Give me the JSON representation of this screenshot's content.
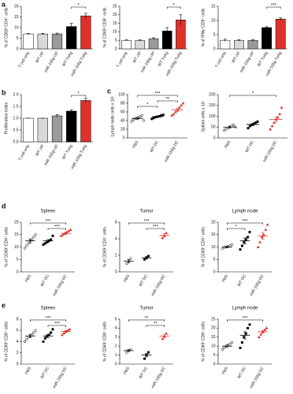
{
  "chart_data": [
    {
      "type": "bar",
      "panel": "a",
      "ylabel": "% of CD69⁺CD4⁺ cells",
      "categories": [
        "T cell only",
        "WT ctrl",
        "miR-155g ctrl",
        "WT TuAg",
        "miR-155g TuAg"
      ],
      "values": [
        7,
        7,
        7,
        10.5,
        15.5
      ],
      "errors": [
        0.3,
        0.3,
        0.4,
        1.5,
        1.2
      ],
      "colors": [
        "#ffffff",
        "#d9d9d9",
        "#9a9a9a",
        "#000000",
        "#e0302a"
      ],
      "ylim": [
        0,
        20
      ],
      "yticks": [
        0,
        5,
        10,
        15,
        20
      ],
      "annotations": [
        {
          "from": 3,
          "to": 4,
          "label": "*"
        }
      ]
    },
    {
      "type": "bar",
      "ylabel": "% of CD69⁺CD8⁺ cells",
      "categories": [
        "T cell only",
        "WT ctrl",
        "miR-155g ctrl",
        "WT TuAg",
        "miR-155g TuAg"
      ],
      "values": [
        5,
        5,
        6,
        10.5,
        17
      ],
      "errors": [
        0.3,
        0.3,
        0.5,
        2,
        3
      ],
      "colors": [
        "#ffffff",
        "#d9d9d9",
        "#9a9a9a",
        "#000000",
        "#e0302a"
      ],
      "ylim": [
        0,
        25
      ],
      "yticks": [
        0,
        5,
        10,
        15,
        20,
        25
      ],
      "annotations": [
        {
          "from": 3,
          "to": 4,
          "label": "*"
        }
      ]
    },
    {
      "type": "bar",
      "ylabel": "% of IFNγ⁺CD8⁺ cells",
      "categories": [
        "T cell only",
        "WT ctrl",
        "miR-155g ctrl",
        "WT TuAg",
        "miR-155g TuAg"
      ],
      "values": [
        3,
        3,
        3,
        7.5,
        10.5
      ],
      "errors": [
        0.4,
        0.3,
        0.3,
        0.3,
        0.4
      ],
      "colors": [
        "#ffffff",
        "#d9d9d9",
        "#9a9a9a",
        "#000000",
        "#e0302a"
      ],
      "ylim": [
        0,
        15
      ],
      "yticks": [
        0,
        5,
        10,
        15
      ],
      "annotations": [
        {
          "from": 3,
          "to": 4,
          "label": "***"
        }
      ]
    },
    {
      "type": "bar",
      "panel": "b",
      "ylabel": "Proliferation Index",
      "categories": [
        "T cell only",
        "WT ctrl",
        "miR-155g ctrl",
        "WT TuAg",
        "miR-155g TuAg"
      ],
      "values": [
        1.0,
        1.0,
        1.1,
        1.3,
        1.75
      ],
      "errors": [
        0,
        0,
        0.05,
        0.05,
        0.1
      ],
      "colors": [
        "#ffffff",
        "#d9d9d9",
        "#9a9a9a",
        "#000000",
        "#e0302a"
      ],
      "ylim": [
        0,
        2
      ],
      "yticks": [
        {
          "value": 0,
          "label": "0.0"
        },
        0.5,
        {
          "value": 1,
          "label": "1.0"
        },
        1.5,
        {
          "value": 2,
          "label": "2.0"
        }
      ],
      "annotations": [
        {
          "from": 3,
          "to": 4,
          "label": "*"
        }
      ]
    },
    {
      "type": "dotplot",
      "panel": "c",
      "ylabel": "Lymph node cells x 10⁵",
      "categories": [
        "PBS",
        "WT DC",
        "miR-155g DC"
      ],
      "points": [
        [
          38,
          42,
          44,
          45,
          46,
          48,
          50,
          52,
          40
        ],
        [
          44,
          46,
          48,
          49,
          50,
          52,
          53
        ],
        [
          52,
          55,
          60,
          65,
          70,
          75,
          80
        ]
      ],
      "means": [
        45,
        49,
        65
      ],
      "errors": [
        2,
        1.5,
        4
      ],
      "colors": [
        "#ffffff",
        "#000000",
        "#e0302a"
      ],
      "markers": [
        "circle",
        "square",
        "triangle"
      ],
      "ylim": [
        0,
        100
      ],
      "yticks": [
        0,
        20,
        40,
        60,
        80,
        100
      ],
      "annotations": [
        {
          "from": 0,
          "to": 1,
          "label": "*"
        },
        {
          "from": 1,
          "to": 2,
          "label": "**"
        },
        {
          "from": 0,
          "to": 2,
          "label": "***"
        }
      ]
    },
    {
      "type": "dotplot",
      "ylabel": "Spleen cells x 10⁷",
      "categories": [
        "PBS",
        "WT DC",
        "miR-155g DC"
      ],
      "points": [
        [
          35,
          40,
          45,
          50,
          55,
          60,
          50
        ],
        [
          45,
          55,
          60,
          65,
          70,
          75
        ],
        [
          40,
          55,
          70,
          85,
          95,
          110,
          140
        ]
      ],
      "means": [
        50,
        62,
        85
      ],
      "errors": [
        4,
        5,
        12
      ],
      "colors": [
        "#ffffff",
        "#000000",
        "#e0302a"
      ],
      "markers": [
        "circle",
        "square",
        "triangle"
      ],
      "ylim": [
        0,
        200
      ],
      "yticks": [
        0,
        50,
        100,
        150,
        200
      ],
      "annotations": [
        {
          "from": 0,
          "to": 2,
          "label": "*"
        }
      ]
    },
    {
      "type": "dotplot",
      "panel": "d",
      "title": "Spleen",
      "ylabel": "% of CD69⁺CD4⁺ cells",
      "categories": [
        "PBS",
        "WT DC",
        "miR-155g DC"
      ],
      "points": [
        [
          9.5,
          10.5,
          11.5,
          12.5,
          13,
          14,
          15
        ],
        [
          11,
          11.5,
          12,
          12.5,
          13,
          14.5
        ],
        [
          14.5,
          15,
          15.5,
          16,
          16.5,
          17
        ]
      ],
      "means": [
        12.5,
        12.5,
        15.5
      ],
      "errors": [
        0.8,
        0.5,
        0.5
      ],
      "colors": [
        "#ffffff",
        "#000000",
        "#e0302a"
      ],
      "markers": [
        "circle",
        "square",
        "triangle"
      ],
      "ylim": [
        0,
        20
      ],
      "yticks": [
        0,
        5,
        10,
        15,
        20
      ],
      "annotations": [
        {
          "from": 1,
          "to": 2,
          "label": "***"
        },
        {
          "from": 0,
          "to": 2,
          "label": "***"
        }
      ]
    },
    {
      "type": "dotplot",
      "title": "Tumor",
      "ylabel": "% of CD69⁺CD4⁺ cells",
      "categories": [
        "PBS",
        "WT DC",
        "miR-155g DC"
      ],
      "points": [
        [
          1.0,
          1.3,
          1.6
        ],
        [
          1.5,
          1.7,
          1.9
        ],
        [
          4.1,
          4.4,
          4.7
        ]
      ],
      "means": [
        1.3,
        1.7,
        4.4
      ],
      "errors": [
        0.2,
        0.15,
        0.2
      ],
      "colors": [
        "#ffffff",
        "#000000",
        "#e0302a"
      ],
      "markers": [
        "circle",
        "square",
        "triangle"
      ],
      "ylim": [
        0,
        6
      ],
      "yticks": [
        0,
        2,
        4,
        6
      ],
      "annotations": [
        {
          "from": 1,
          "to": 2,
          "label": "***"
        },
        {
          "from": 0,
          "to": 2,
          "label": "***"
        }
      ]
    },
    {
      "type": "dotplot",
      "title": "Lymph node",
      "ylabel": "% of CD69⁺CD4⁺ cells",
      "categories": [
        "PBS",
        "WT DC",
        "miR-155g DC"
      ],
      "points": [
        [
          9.5,
          9.8,
          10,
          10.2,
          10.5,
          11
        ],
        [
          9,
          10.5,
          12,
          13,
          14,
          16
        ],
        [
          10,
          12,
          14,
          15,
          17,
          19
        ]
      ],
      "means": [
        10,
        12.5,
        14.5
      ],
      "errors": [
        0.3,
        1.2,
        1.4
      ],
      "colors": [
        "#ffffff",
        "#000000",
        "#e0302a"
      ],
      "markers": [
        "circle",
        "square",
        "triangle"
      ],
      "ylim": [
        0,
        20
      ],
      "yticks": [
        0,
        5,
        10,
        15,
        20
      ],
      "annotations": [
        {
          "from": 0,
          "to": 1,
          "label": "*"
        },
        {
          "from": 0,
          "to": 2,
          "label": "***"
        }
      ]
    },
    {
      "type": "dotplot",
      "panel": "e",
      "title": "Spleen",
      "ylabel": "% of CD69⁺CD8⁺ cells",
      "categories": [
        "PBS",
        "WT DC",
        "miR-155g DC"
      ],
      "points": [
        [
          4,
          4.4,
          4.8,
          5,
          5.2,
          5.6,
          6
        ],
        [
          4,
          4.6,
          5,
          5.2,
          5.6,
          6.2
        ],
        [
          5.2,
          5.5,
          5.8,
          6,
          6.2
        ]
      ],
      "means": [
        5,
        5,
        5.8
      ],
      "errors": [
        0.3,
        0.3,
        0.2
      ],
      "colors": [
        "#ffffff",
        "#000000",
        "#e0302a"
      ],
      "markers": [
        "circle",
        "square",
        "triangle"
      ],
      "ylim": [
        0,
        8
      ],
      "yticks": [
        0,
        2,
        4,
        6,
        8
      ],
      "annotations": [
        {
          "from": 1,
          "to": 2,
          "label": "***"
        },
        {
          "from": 0,
          "to": 2,
          "label": "***"
        }
      ]
    },
    {
      "type": "dotplot",
      "title": "Tumor",
      "ylabel": "% of CD69⁺CD8⁺ cells",
      "categories": [
        "PBS",
        "WT DC",
        "miR-155g DC"
      ],
      "points": [
        [
          1.3,
          1.5,
          1.6
        ],
        [
          0.6,
          1.0,
          1.3
        ],
        [
          2.8,
          3.1,
          3.4
        ]
      ],
      "means": [
        1.5,
        1.0,
        3.1
      ],
      "errors": [
        0.1,
        0.2,
        0.2
      ],
      "colors": [
        "#ffffff",
        "#000000",
        "#e0302a"
      ],
      "markers": [
        "circle",
        "square",
        "triangle"
      ],
      "ylim": [
        0,
        5
      ],
      "yticks": [
        0,
        1,
        2,
        3,
        4,
        5
      ],
      "annotations": [
        {
          "from": 1,
          "to": 2,
          "label": "**"
        },
        {
          "from": 0,
          "to": 2,
          "label": "**"
        }
      ]
    },
    {
      "type": "dotplot",
      "title": "Lymph node",
      "ylabel": "% of CD69⁺CD8⁺ cells",
      "categories": [
        "PBS",
        "WT DC",
        "miR-155g DC"
      ],
      "points": [
        [
          8,
          9,
          10,
          10.5,
          11,
          12
        ],
        [
          9,
          12,
          15,
          17,
          20,
          22
        ],
        [
          15,
          16.5,
          18,
          19,
          20
        ]
      ],
      "means": [
        10,
        16,
        18
      ],
      "errors": [
        0.6,
        2,
        0.8
      ],
      "colors": [
        "#ffffff",
        "#000000",
        "#e0302a"
      ],
      "markers": [
        "circle",
        "square",
        "triangle"
      ],
      "ylim": [
        0,
        25
      ],
      "yticks": [
        0,
        5,
        10,
        15,
        20,
        25
      ],
      "annotations": [
        {
          "from": 0,
          "to": 2,
          "label": "***"
        }
      ]
    }
  ]
}
